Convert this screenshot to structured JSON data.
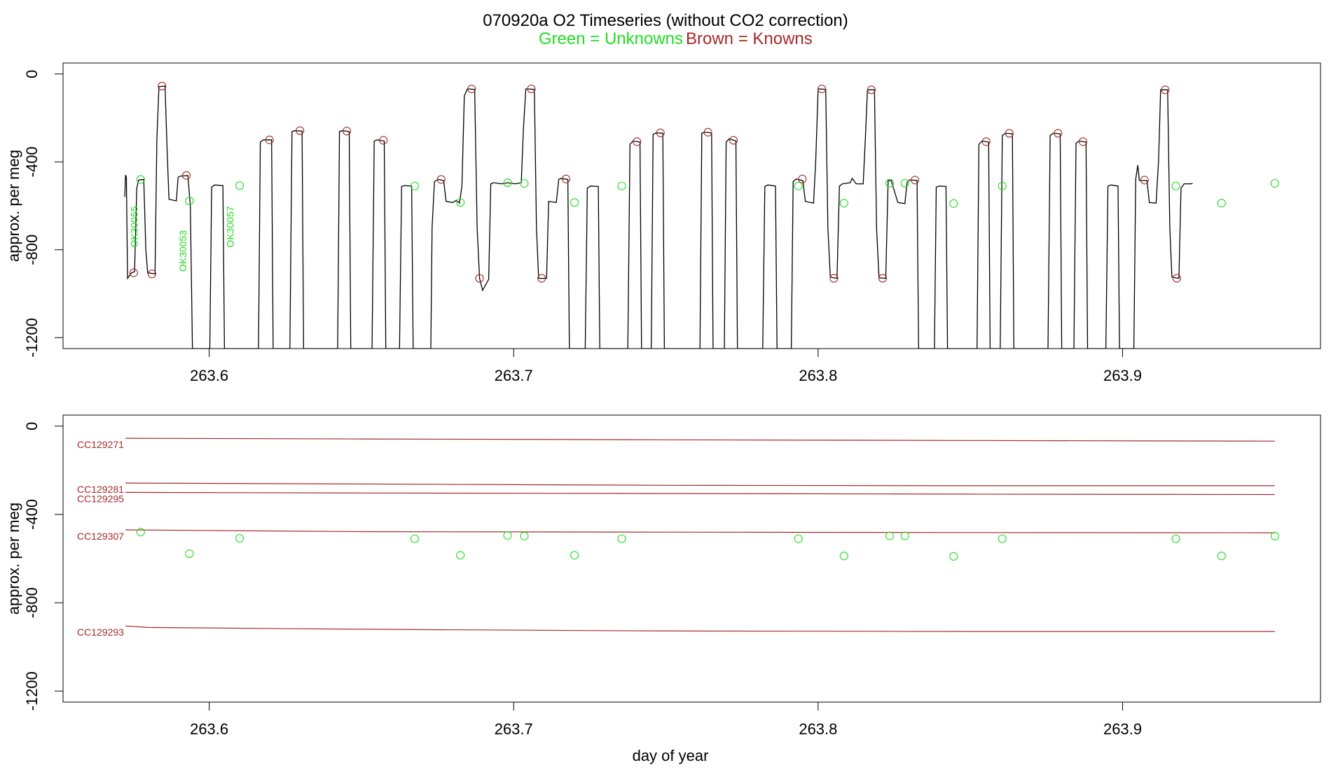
{
  "chart_data": [
    {
      "type": "line",
      "title": "070920a   O2 Timeseries (without CO2 correction)",
      "legend": [
        {
          "text": "Green = Unknowns",
          "color": "#22dd22"
        },
        {
          "text": "Brown = Knowns",
          "color": "#a52a2a"
        }
      ],
      "ylabel": "approx. per meg",
      "xlabel": "",
      "xlim": [
        263.552,
        263.965
      ],
      "ylim": [
        -1250,
        50
      ],
      "xticks": [
        263.6,
        263.7,
        263.8,
        263.9
      ],
      "xtick_labels": [
        "263.6",
        "263.7",
        "263.8",
        "263.9"
      ],
      "yticks": [
        0,
        -400,
        -800,
        -1200
      ],
      "ytick_labels": [
        "0",
        "-400",
        "-800",
        "-1200"
      ],
      "trace_color": "#000000",
      "trace": [
        [
          263.5723,
          -560
        ],
        [
          263.5725,
          -460
        ],
        [
          263.5728,
          -470
        ],
        [
          263.5732,
          -930
        ],
        [
          263.5745,
          -905
        ],
        [
          263.5755,
          -900
        ],
        [
          263.5762,
          -520
        ],
        [
          263.5768,
          -483
        ],
        [
          263.5785,
          -480
        ],
        [
          263.5792,
          -800
        ],
        [
          263.5798,
          -905
        ],
        [
          263.5822,
          -910
        ],
        [
          263.5828,
          -300
        ],
        [
          263.5835,
          -58
        ],
        [
          263.5855,
          -55
        ],
        [
          263.5862,
          -350
        ],
        [
          263.5868,
          -570
        ],
        [
          263.5892,
          -578
        ],
        [
          263.5898,
          -470
        ],
        [
          263.5905,
          -465
        ],
        [
          263.593,
          -462
        ],
        [
          263.5938,
          -600
        ],
        [
          263.5945,
          -1250
        ],
        [
          263.6002,
          -1250
        ],
        [
          263.6008,
          -515
        ],
        [
          263.6018,
          -505
        ],
        [
          263.6045,
          -508
        ],
        [
          263.605,
          -1250
        ],
        [
          263.6162,
          -1250
        ],
        [
          263.6168,
          -310
        ],
        [
          263.6178,
          -300
        ],
        [
          263.6205,
          -300
        ],
        [
          263.621,
          -1250
        ],
        [
          263.6265,
          -1250
        ],
        [
          263.6272,
          -262
        ],
        [
          263.6282,
          -258
        ],
        [
          263.6305,
          -260
        ],
        [
          263.631,
          -1250
        ],
        [
          263.6422,
          -1250
        ],
        [
          263.6428,
          -262
        ],
        [
          263.6438,
          -258
        ],
        [
          263.646,
          -262
        ],
        [
          263.6465,
          -1250
        ],
        [
          263.6535,
          -1250
        ],
        [
          263.6542,
          -305
        ],
        [
          263.6552,
          -300
        ],
        [
          263.6575,
          -305
        ],
        [
          263.658,
          -1250
        ],
        [
          263.6625,
          -1250
        ],
        [
          263.6632,
          -512
        ],
        [
          263.6642,
          -508
        ],
        [
          263.6665,
          -510
        ],
        [
          263.667,
          -1250
        ],
        [
          263.6728,
          -1250
        ],
        [
          263.6732,
          -700
        ],
        [
          263.674,
          -490
        ],
        [
          263.6752,
          -480
        ],
        [
          263.677,
          -485
        ],
        [
          263.6778,
          -580
        ],
        [
          263.68,
          -585
        ],
        [
          263.6812,
          -575
        ],
        [
          263.6822,
          -588
        ],
        [
          263.683,
          -510
        ],
        [
          263.6838,
          -100
        ],
        [
          263.6848,
          -68
        ],
        [
          263.6872,
          -70
        ],
        [
          263.688,
          -700
        ],
        [
          263.6888,
          -930
        ],
        [
          263.6898,
          -985
        ],
        [
          263.6918,
          -935
        ],
        [
          263.6925,
          -500
        ],
        [
          263.6935,
          -495
        ],
        [
          263.696,
          -500
        ],
        [
          263.698,
          -495
        ],
        [
          263.7005,
          -500
        ],
        [
          263.7025,
          -495
        ],
        [
          263.7032,
          -250
        ],
        [
          263.704,
          -68
        ],
        [
          263.7068,
          -70
        ],
        [
          263.7075,
          -700
        ],
        [
          263.7082,
          -930
        ],
        [
          263.7108,
          -930
        ],
        [
          263.7115,
          -580
        ],
        [
          263.714,
          -585
        ],
        [
          263.7148,
          -480
        ],
        [
          263.7155,
          -475
        ],
        [
          263.7178,
          -480
        ],
        [
          263.7183,
          -1250
        ],
        [
          263.7235,
          -1250
        ],
        [
          263.7242,
          -520
        ],
        [
          263.7252,
          -510
        ],
        [
          263.7278,
          -512
        ],
        [
          263.7283,
          -1250
        ],
        [
          263.7375,
          -1250
        ],
        [
          263.7382,
          -320
        ],
        [
          263.7392,
          -305
        ],
        [
          263.7415,
          -310
        ],
        [
          263.742,
          -1250
        ],
        [
          263.7452,
          -1250
        ],
        [
          263.7458,
          -275
        ],
        [
          263.7468,
          -268
        ],
        [
          263.749,
          -270
        ],
        [
          263.7495,
          -1250
        ],
        [
          263.7612,
          -1250
        ],
        [
          263.7618,
          -270
        ],
        [
          263.7628,
          -265
        ],
        [
          263.765,
          -268
        ],
        [
          263.7655,
          -1250
        ],
        [
          263.7692,
          -1250
        ],
        [
          263.7698,
          -310
        ],
        [
          263.7708,
          -295
        ],
        [
          263.773,
          -305
        ],
        [
          263.7735,
          -1250
        ],
        [
          263.7818,
          -1250
        ],
        [
          263.7825,
          -512
        ],
        [
          263.7835,
          -505
        ],
        [
          263.786,
          -510
        ],
        [
          263.7865,
          -1250
        ],
        [
          263.7912,
          -1250
        ],
        [
          263.7918,
          -490
        ],
        [
          263.7928,
          -478
        ],
        [
          263.795,
          -485
        ],
        [
          263.7958,
          -580
        ],
        [
          263.7985,
          -588
        ],
        [
          263.7992,
          -400
        ],
        [
          263.8,
          -68
        ],
        [
          263.8025,
          -70
        ],
        [
          263.8032,
          -700
        ],
        [
          263.804,
          -925
        ],
        [
          263.8062,
          -930
        ],
        [
          263.807,
          -510
        ],
        [
          263.808,
          -500
        ],
        [
          263.8105,
          -495
        ],
        [
          263.8112,
          -475
        ],
        [
          263.8125,
          -500
        ],
        [
          263.8148,
          -500
        ],
        [
          263.8155,
          -300
        ],
        [
          263.8162,
          -72
        ],
        [
          263.8185,
          -72
        ],
        [
          263.8192,
          -700
        ],
        [
          263.82,
          -928
        ],
        [
          263.8222,
          -930
        ],
        [
          263.823,
          -485
        ],
        [
          263.824,
          -485
        ],
        [
          263.8262,
          -585
        ],
        [
          263.8285,
          -590
        ],
        [
          263.8292,
          -495
        ],
        [
          263.83,
          -482
        ],
        [
          263.8325,
          -485
        ],
        [
          263.833,
          -1250
        ],
        [
          263.8382,
          -1250
        ],
        [
          263.8388,
          -515
        ],
        [
          263.8398,
          -510
        ],
        [
          263.842,
          -512
        ],
        [
          263.8425,
          -1250
        ],
        [
          263.8522,
          -1250
        ],
        [
          263.8528,
          -320
        ],
        [
          263.8538,
          -305
        ],
        [
          263.856,
          -310
        ],
        [
          263.8565,
          -1250
        ],
        [
          263.8598,
          -1250
        ],
        [
          263.8605,
          -280
        ],
        [
          263.8615,
          -270
        ],
        [
          263.8638,
          -272
        ],
        [
          263.8643,
          -1250
        ],
        [
          263.8755,
          -1250
        ],
        [
          263.8762,
          -280
        ],
        [
          263.8772,
          -270
        ],
        [
          263.8795,
          -272
        ],
        [
          263.88,
          -1250
        ],
        [
          263.884,
          -1250
        ],
        [
          263.8847,
          -315
        ],
        [
          263.8857,
          -305
        ],
        [
          263.888,
          -310
        ],
        [
          263.8885,
          -1250
        ],
        [
          263.8945,
          -1250
        ],
        [
          263.8952,
          -510
        ],
        [
          263.8962,
          -505
        ],
        [
          263.8985,
          -510
        ],
        [
          263.899,
          -1250
        ],
        [
          263.9037,
          -1250
        ],
        [
          263.9043,
          -480
        ],
        [
          263.905,
          -415
        ],
        [
          263.9055,
          -485
        ],
        [
          263.908,
          -485
        ],
        [
          263.9088,
          -585
        ],
        [
          263.911,
          -588
        ],
        [
          263.9118,
          -400
        ],
        [
          263.9125,
          -72
        ],
        [
          263.9148,
          -72
        ],
        [
          263.9155,
          -700
        ],
        [
          263.9162,
          -925
        ],
        [
          263.9185,
          -930
        ],
        [
          263.9192,
          -520
        ],
        [
          263.9202,
          -500
        ],
        [
          263.9225,
          -500
        ],
        [
          263.923,
          -498
        ]
      ],
      "known_points": [
        [
          263.5752,
          -905
        ],
        [
          263.5812,
          -910
        ],
        [
          263.5845,
          -55
        ],
        [
          263.5925,
          -462
        ],
        [
          263.6198,
          -300
        ],
        [
          263.6298,
          -258
        ],
        [
          263.6452,
          -260
        ],
        [
          263.6572,
          -302
        ],
        [
          263.6762,
          -480
        ],
        [
          263.6862,
          -68
        ],
        [
          263.6888,
          -930
        ],
        [
          263.7058,
          -68
        ],
        [
          263.7092,
          -930
        ],
        [
          263.7172,
          -478
        ],
        [
          263.7405,
          -308
        ],
        [
          263.7482,
          -268
        ],
        [
          263.7638,
          -265
        ],
        [
          263.7722,
          -302
        ],
        [
          263.7948,
          -478
        ],
        [
          263.8012,
          -68
        ],
        [
          263.8052,
          -930
        ],
        [
          263.8175,
          -72
        ],
        [
          263.8212,
          -930
        ],
        [
          263.8318,
          -483
        ],
        [
          263.8552,
          -308
        ],
        [
          263.8628,
          -270
        ],
        [
          263.8788,
          -270
        ],
        [
          263.887,
          -308
        ],
        [
          263.9072,
          -483
        ],
        [
          263.914,
          -72
        ],
        [
          263.9178,
          -930
        ]
      ],
      "unknown_points": [
        [
          263.5775,
          -480
        ],
        [
          263.5935,
          -578
        ],
        [
          263.61,
          -508
        ],
        [
          263.6675,
          -510
        ],
        [
          263.6825,
          -585
        ],
        [
          263.698,
          -495
        ],
        [
          263.7035,
          -498
        ],
        [
          263.72,
          -585
        ],
        [
          263.7355,
          -510
        ],
        [
          263.7935,
          -510
        ],
        [
          263.8085,
          -588
        ],
        [
          263.8235,
          -497
        ],
        [
          263.8285,
          -497
        ],
        [
          263.8445,
          -590
        ],
        [
          263.8605,
          -510
        ],
        [
          263.9175,
          -510
        ],
        [
          263.9325,
          -588
        ],
        [
          263.95,
          -498
        ]
      ],
      "sample_labels": [
        {
          "text": "OK30055",
          "x": 263.5765,
          "y": -790
        },
        {
          "text": "OK30053",
          "x": 263.5925,
          "y": -900
        },
        {
          "text": "OK30057",
          "x": 263.608,
          "y": -790
        }
      ]
    },
    {
      "type": "line",
      "ylabel": "approx. per meg",
      "xlabel": "day of year",
      "xlim": [
        263.552,
        263.965
      ],
      "ylim": [
        -1250,
        50
      ],
      "xticks": [
        263.6,
        263.7,
        263.8,
        263.9
      ],
      "xtick_labels": [
        "263.6",
        "263.7",
        "263.8",
        "263.9"
      ],
      "yticks": [
        0,
        -400,
        -800,
        -1200
      ],
      "ytick_labels": [
        "0",
        "-400",
        "-800",
        "-1200"
      ],
      "series": [
        {
          "name": "CC129271",
          "color": "#a52a2a",
          "x": [
            263.5725,
            263.65,
            263.75,
            263.85,
            263.95
          ],
          "values": [
            -55,
            -58,
            -62,
            -65,
            -68
          ]
        },
        {
          "name": "CC129281",
          "color": "#a52a2a",
          "x": [
            263.5725,
            263.65,
            263.75,
            263.85,
            263.95
          ],
          "values": [
            -258,
            -262,
            -268,
            -270,
            -270
          ]
        },
        {
          "name": "CC129295",
          "color": "#a52a2a",
          "x": [
            263.5725,
            263.65,
            263.75,
            263.85,
            263.95
          ],
          "values": [
            -300,
            -303,
            -305,
            -308,
            -310
          ]
        },
        {
          "name": "CC129307",
          "color": "#a52a2a",
          "x": [
            263.5725,
            263.65,
            263.75,
            263.85,
            263.95
          ],
          "values": [
            -470,
            -478,
            -480,
            -482,
            -483
          ]
        },
        {
          "name": "CC129293",
          "color": "#a52a2a",
          "x": [
            263.5725,
            263.58,
            263.65,
            263.75,
            263.85,
            263.95
          ],
          "values": [
            -905,
            -912,
            -920,
            -928,
            -930,
            -930
          ]
        }
      ],
      "unknown_points": [
        [
          263.5775,
          -480
        ],
        [
          263.5935,
          -578
        ],
        [
          263.61,
          -508
        ],
        [
          263.6675,
          -510
        ],
        [
          263.6825,
          -585
        ],
        [
          263.698,
          -495
        ],
        [
          263.7035,
          -498
        ],
        [
          263.72,
          -585
        ],
        [
          263.7355,
          -510
        ],
        [
          263.7935,
          -510
        ],
        [
          263.8085,
          -588
        ],
        [
          263.8235,
          -497
        ],
        [
          263.8285,
          -497
        ],
        [
          263.8445,
          -590
        ],
        [
          263.8605,
          -510
        ],
        [
          263.9175,
          -510
        ],
        [
          263.9325,
          -588
        ],
        [
          263.95,
          -498
        ]
      ]
    }
  ]
}
